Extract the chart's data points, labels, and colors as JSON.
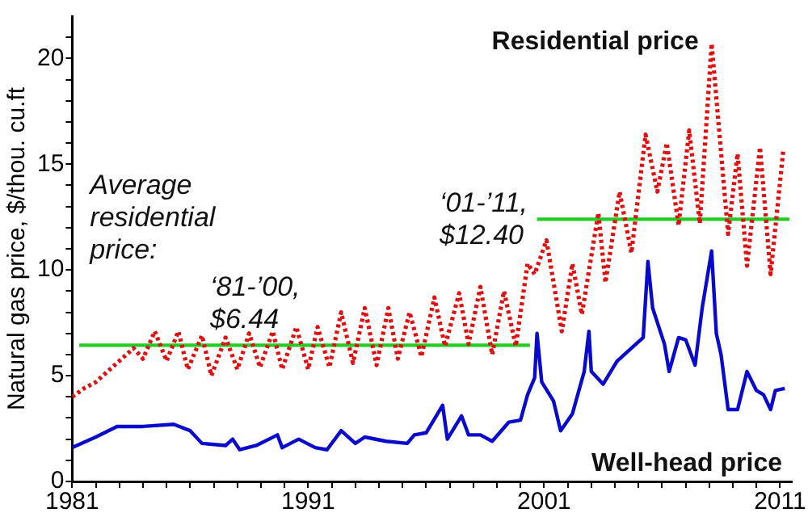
{
  "chart_data": {
    "type": "line",
    "ylabel": "Natural gas price, $/thou. cu.ft",
    "xlim": [
      1981,
      2011.5
    ],
    "ylim": [
      0,
      22
    ],
    "xticks": [
      1981,
      {
        "value": 1982,
        "label": null
      },
      {
        "value": 1983,
        "label": null
      },
      {
        "value": 1984,
        "label": null
      },
      {
        "value": 1985,
        "label": null
      },
      {
        "value": 1986,
        "label": null
      },
      {
        "value": 1987,
        "label": null
      },
      {
        "value": 1988,
        "label": null
      },
      {
        "value": 1989,
        "label": null
      },
      {
        "value": 1990,
        "label": null
      },
      1991,
      {
        "value": 1992,
        "label": null
      },
      {
        "value": 1993,
        "label": null
      },
      {
        "value": 1994,
        "label": null
      },
      {
        "value": 1995,
        "label": null
      },
      {
        "value": 1996,
        "label": null
      },
      {
        "value": 1997,
        "label": null
      },
      {
        "value": 1998,
        "label": null
      },
      {
        "value": 1999,
        "label": null
      },
      {
        "value": 2000,
        "label": null
      },
      2001,
      {
        "value": 2002,
        "label": null
      },
      {
        "value": 2003,
        "label": null
      },
      {
        "value": 2004,
        "label": null
      },
      {
        "value": 2005,
        "label": null
      },
      {
        "value": 2006,
        "label": null
      },
      {
        "value": 2007,
        "label": null
      },
      {
        "value": 2008,
        "label": null
      },
      {
        "value": 2009,
        "label": null
      },
      {
        "value": 2010,
        "label": null
      },
      2011
    ],
    "yticks": [
      0,
      {
        "value": 1,
        "label": null
      },
      {
        "value": 2,
        "label": null
      },
      {
        "value": 3,
        "label": null
      },
      {
        "value": 4,
        "label": null
      },
      5,
      {
        "value": 6,
        "label": null
      },
      {
        "value": 7,
        "label": null
      },
      {
        "value": 8,
        "label": null
      },
      {
        "value": 9,
        "label": null
      },
      10,
      {
        "value": 11,
        "label": null
      },
      {
        "value": 12,
        "label": null
      },
      {
        "value": 13,
        "label": null
      },
      {
        "value": 14,
        "label": null
      },
      15,
      {
        "value": 16,
        "label": null
      },
      {
        "value": 17,
        "label": null
      },
      {
        "value": 18,
        "label": null
      },
      {
        "value": 19,
        "label": null
      },
      20,
      {
        "value": 21,
        "label": null
      }
    ],
    "grid": false,
    "legend": false,
    "marker": "none",
    "series": [
      {
        "name": "Residential price",
        "color": "#dd1111",
        "line_style": "dotted",
        "x": [
          1981.0,
          1981.5,
          1982.0,
          1982.5,
          1983.0,
          1983.6,
          1984.0,
          1984.5,
          1985.0,
          1985.5,
          1985.9,
          1986.5,
          1986.9,
          1987.5,
          1988.0,
          1988.5,
          1988.96,
          1989.5,
          1989.9,
          1990.5,
          1991.0,
          1991.4,
          1991.9,
          1992.4,
          1992.9,
          1993.4,
          1993.9,
          1994.4,
          1994.8,
          1995.3,
          1995.8,
          1996.35,
          1996.8,
          1997.4,
          1997.8,
          1998.3,
          1998.8,
          1999.3,
          1999.8,
          2000.3,
          2000.6,
          2001.1,
          2001.75,
          2002.2,
          2002.6,
          2003.3,
          2003.6,
          2004.2,
          2004.7,
          2005.3,
          2005.8,
          2006.2,
          2006.7,
          2007.15,
          2007.6,
          2008.1,
          2008.8,
          2009.2,
          2009.6,
          2010.15,
          2010.6,
          2011.14
        ],
        "values": [
          4.0,
          4.4,
          4.7,
          5.2,
          5.7,
          6.3,
          5.8,
          7.1,
          5.7,
          7.1,
          5.3,
          6.9,
          5.0,
          6.8,
          5.3,
          7.0,
          5.4,
          7.1,
          5.3,
          7.3,
          5.3,
          7.3,
          5.4,
          8.0,
          5.6,
          8.2,
          5.5,
          8.2,
          5.8,
          8.0,
          5.9,
          8.7,
          6.4,
          8.9,
          6.5,
          9.2,
          6.0,
          9.0,
          6.4,
          10.3,
          9.8,
          11.4,
          7.1,
          10.3,
          7.9,
          12.7,
          9.4,
          13.7,
          10.8,
          16.4,
          13.7,
          16.0,
          12.1,
          16.6,
          12.2,
          20.7,
          11.7,
          15.5,
          10.2,
          15.8,
          9.8,
          15.7
        ]
      },
      {
        "name": "Well-head price",
        "color": "#0a0acc",
        "line_style": "solid",
        "x": [
          1981.0,
          1982.0,
          1982.9,
          1984.0,
          1985.3,
          1986.0,
          1986.5,
          1987.5,
          1987.8,
          1988.1,
          1988.8,
          1989.7,
          1989.9,
          1990.6,
          1991.3,
          1991.8,
          1992.4,
          1993.0,
          1993.4,
          1994.3,
          1995.2,
          1995.5,
          1996.0,
          1996.7,
          1996.9,
          1997.5,
          1997.8,
          1998.3,
          1998.8,
          1999.5,
          2000.0,
          2000.3,
          2000.6,
          2000.7,
          2000.9,
          2001.4,
          2001.7,
          2002.2,
          2002.7,
          2002.9,
          2003.0,
          2003.5,
          2004.1,
          2004.6,
          2005.2,
          2005.4,
          2005.6,
          2006.1,
          2006.3,
          2006.7,
          2007.0,
          2007.4,
          2007.7,
          2008.1,
          2008.3,
          2008.5,
          2008.8,
          2009.2,
          2009.6,
          2010.0,
          2010.3,
          2010.6,
          2010.8,
          2011.2
        ],
        "values": [
          1.6,
          2.1,
          2.6,
          2.6,
          2.7,
          2.4,
          1.8,
          1.7,
          2.0,
          1.5,
          1.7,
          2.2,
          1.6,
          2.0,
          1.6,
          1.5,
          2.4,
          1.8,
          2.1,
          1.9,
          1.8,
          2.2,
          2.3,
          3.6,
          2.0,
          3.1,
          2.2,
          2.2,
          1.9,
          2.8,
          2.9,
          4.1,
          4.9,
          7.0,
          4.7,
          3.8,
          2.4,
          3.2,
          5.2,
          7.1,
          5.2,
          4.6,
          5.7,
          6.2,
          6.8,
          10.4,
          8.2,
          6.5,
          5.2,
          6.8,
          6.7,
          5.5,
          8.2,
          10.9,
          7.0,
          6.0,
          3.4,
          3.4,
          5.2,
          4.3,
          4.1,
          3.4,
          4.3,
          4.4
        ]
      },
      {
        "color": "#22cc22",
        "line_style": "solid",
        "x": [
          1981.3,
          2000.4
        ],
        "values": [
          6.44,
          6.44
        ]
      },
      {
        "color": "#22cc22",
        "line_style": "solid",
        "x": [
          2000.7,
          2011.4
        ],
        "values": [
          12.4,
          12.4
        ]
      }
    ],
    "annotations": [
      "Average residential price:",
      "‘81-’00, $6.44",
      "‘01-’11, $12.40"
    ]
  }
}
